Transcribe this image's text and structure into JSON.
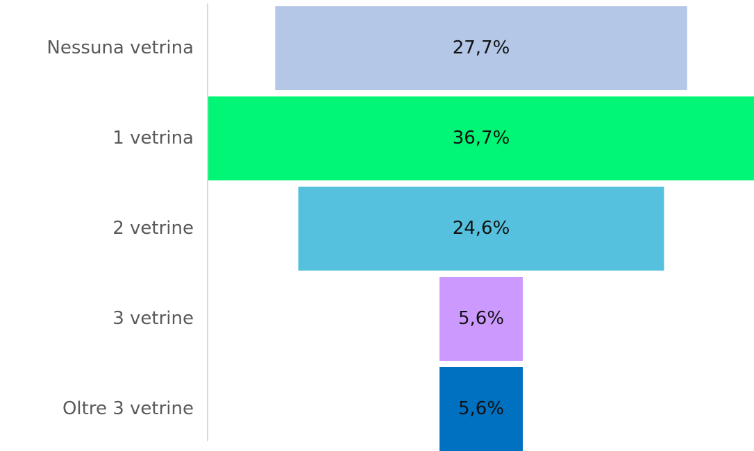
{
  "chart_data": {
    "type": "funnel",
    "categories": [
      "Nessuna vetrina",
      "1 vetrina",
      "2 vetrine",
      "3 vetrine",
      "Oltre 3 vetrine"
    ],
    "values": [
      27.7,
      36.7,
      24.6,
      5.6,
      5.6
    ],
    "value_labels": [
      "27,7%",
      "36,7%",
      "24,6%",
      "5,6%",
      "5,6%"
    ],
    "colors": [
      "#b4c7e7",
      "#00f674",
      "#56c1df",
      "#cc99ff",
      "#0070c0"
    ]
  }
}
